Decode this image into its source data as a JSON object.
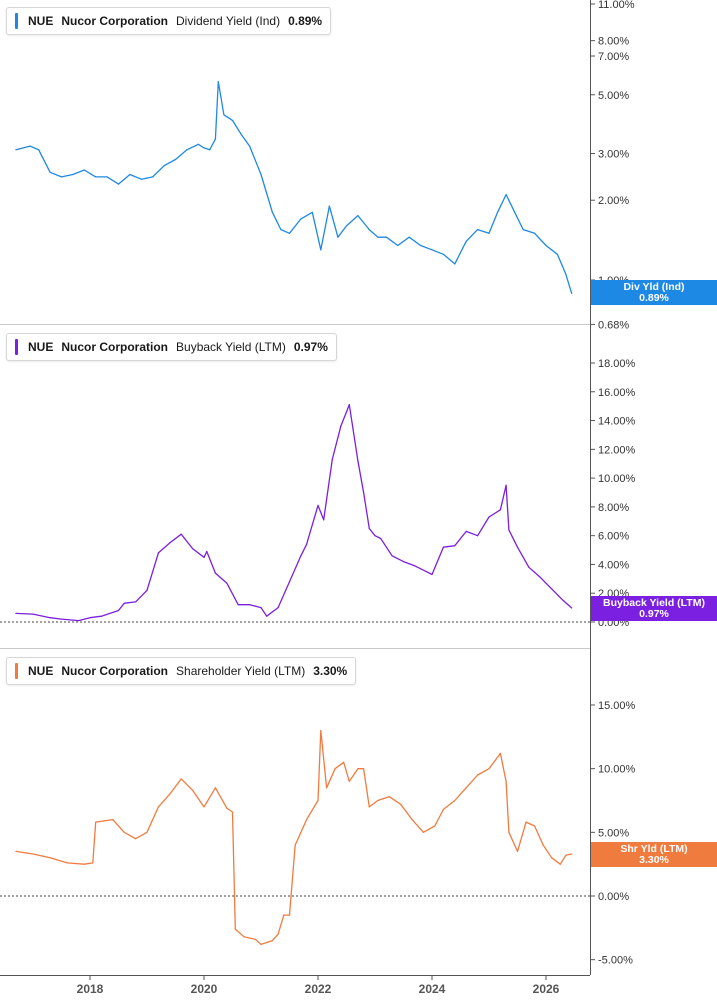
{
  "colors": {
    "blue": "#1e88e5",
    "purple": "#7b1fe0",
    "orange": "#f07b3f",
    "axis": "#555555",
    "grid_sep": "#c8c8c8"
  },
  "x_axis": {
    "ticks": [
      "2018",
      "2020",
      "2022",
      "2024",
      "2026"
    ]
  },
  "legends": [
    {
      "ticker": "NUE",
      "company": "Nucor Corporation",
      "metric": "Dividend Yield (Ind)",
      "value": "0.89%"
    },
    {
      "ticker": "NUE",
      "company": "Nucor Corporation",
      "metric": "Buyback Yield (LTM)",
      "value": "0.97%"
    },
    {
      "ticker": "NUE",
      "company": "Nucor Corporation",
      "metric": "Shareholder Yield (LTM)",
      "value": "3.30%"
    }
  ],
  "tags": [
    {
      "label": "Div Yld (Ind)",
      "value": "0.89%"
    },
    {
      "label": "Buyback Yield (LTM)",
      "value": "0.97%"
    },
    {
      "label": "Shr Yld (LTM)",
      "value": "3.30%"
    }
  ],
  "chart_data": [
    {
      "type": "line",
      "title": "Dividend Yield (Ind)",
      "y_scale": "log",
      "ylim": [
        0.68,
        11.0
      ],
      "y_ticks": [
        "11.00%",
        "8.00%",
        "7.00%",
        "5.00%",
        "3.00%",
        "2.00%",
        "1.00%",
        "0.85%",
        "0.68%"
      ],
      "series": [
        {
          "name": "Div Yld (Ind)",
          "x": [
            2016.7,
            2016.95,
            2017.1,
            2017.3,
            2017.5,
            2017.7,
            2017.9,
            2018.1,
            2018.3,
            2018.5,
            2018.7,
            2018.9,
            2019.1,
            2019.3,
            2019.5,
            2019.7,
            2019.9,
            2020.0,
            2020.1,
            2020.2,
            2020.25,
            2020.35,
            2020.5,
            2020.65,
            2020.8,
            2021.0,
            2021.2,
            2021.35,
            2021.5,
            2021.7,
            2021.9,
            2022.05,
            2022.2,
            2022.35,
            2022.5,
            2022.7,
            2022.9,
            2023.05,
            2023.2,
            2023.4,
            2023.6,
            2023.8,
            2024.0,
            2024.2,
            2024.4,
            2024.6,
            2024.8,
            2025.0,
            2025.15,
            2025.3,
            2025.45,
            2025.6,
            2025.8,
            2026.0,
            2026.2,
            2026.35,
            2026.45
          ],
          "values": [
            3.1,
            3.2,
            3.1,
            2.55,
            2.45,
            2.5,
            2.6,
            2.45,
            2.45,
            2.3,
            2.5,
            2.4,
            2.45,
            2.7,
            2.85,
            3.1,
            3.25,
            3.15,
            3.1,
            3.4,
            5.6,
            4.2,
            4.0,
            3.55,
            3.2,
            2.5,
            1.8,
            1.55,
            1.5,
            1.7,
            1.8,
            1.3,
            1.9,
            1.45,
            1.6,
            1.75,
            1.55,
            1.45,
            1.45,
            1.35,
            1.45,
            1.35,
            1.3,
            1.25,
            1.15,
            1.4,
            1.55,
            1.5,
            1.8,
            2.1,
            1.8,
            1.55,
            1.5,
            1.35,
            1.25,
            1.05,
            0.89
          ]
        }
      ]
    },
    {
      "type": "line",
      "title": "Buyback Yield (LTM)",
      "ylim": [
        0,
        18
      ],
      "y_ticks": [
        "18.00%",
        "16.00%",
        "14.00%",
        "12.00%",
        "10.00%",
        "8.00%",
        "6.00%",
        "4.00%",
        "2.00%",
        "0.00%"
      ],
      "series": [
        {
          "name": "Buyback Yield (LTM)",
          "x": [
            2016.7,
            2017.0,
            2017.3,
            2017.5,
            2017.8,
            2018.0,
            2018.2,
            2018.5,
            2018.6,
            2018.8,
            2019.0,
            2019.2,
            2019.4,
            2019.6,
            2019.8,
            2020.0,
            2020.05,
            2020.2,
            2020.4,
            2020.6,
            2020.8,
            2021.0,
            2021.1,
            2021.3,
            2021.5,
            2021.7,
            2021.8,
            2022.0,
            2022.1,
            2022.25,
            2022.4,
            2022.55,
            2022.7,
            2022.8,
            2022.9,
            2023.0,
            2023.1,
            2023.3,
            2023.5,
            2023.7,
            2023.9,
            2024.0,
            2024.2,
            2024.4,
            2024.6,
            2024.8,
            2025.0,
            2025.2,
            2025.3,
            2025.35,
            2025.5,
            2025.7,
            2025.9,
            2026.1,
            2026.3,
            2026.45
          ],
          "values": [
            0.6,
            0.55,
            0.3,
            0.2,
            0.1,
            0.3,
            0.4,
            0.8,
            1.3,
            1.4,
            2.2,
            4.8,
            5.5,
            6.1,
            5.1,
            4.5,
            4.9,
            3.4,
            2.7,
            1.2,
            1.2,
            1.0,
            0.4,
            1.0,
            2.8,
            4.6,
            5.4,
            8.1,
            7.1,
            11.3,
            13.6,
            15.1,
            11.2,
            9.0,
            6.5,
            6.0,
            5.8,
            4.6,
            4.2,
            3.9,
            3.5,
            3.3,
            5.2,
            5.3,
            6.3,
            6.0,
            7.3,
            7.8,
            9.5,
            6.4,
            5.2,
            3.8,
            3.1,
            2.3,
            1.5,
            0.97
          ]
        }
      ]
    },
    {
      "type": "line",
      "title": "Shareholder Yield (LTM)",
      "ylim": [
        -5,
        15
      ],
      "y_ticks": [
        "15.00%",
        "10.00%",
        "5.00%",
        "0.00%",
        "-5.00%"
      ],
      "series": [
        {
          "name": "Shr Yld (LTM)",
          "x": [
            2016.7,
            2017.0,
            2017.3,
            2017.6,
            2017.9,
            2018.05,
            2018.1,
            2018.4,
            2018.6,
            2018.8,
            2019.0,
            2019.2,
            2019.4,
            2019.6,
            2019.8,
            2020.0,
            2020.2,
            2020.4,
            2020.5,
            2020.55,
            2020.7,
            2020.9,
            2021.0,
            2021.2,
            2021.3,
            2021.4,
            2021.5,
            2021.6,
            2021.8,
            2022.0,
            2022.05,
            2022.15,
            2022.3,
            2022.45,
            2022.55,
            2022.7,
            2022.8,
            2022.9,
            2023.05,
            2023.25,
            2023.45,
            2023.65,
            2023.85,
            2024.05,
            2024.2,
            2024.4,
            2024.6,
            2024.8,
            2025.0,
            2025.2,
            2025.3,
            2025.35,
            2025.5,
            2025.65,
            2025.8,
            2025.95,
            2026.1,
            2026.25,
            2026.35,
            2026.45
          ],
          "values": [
            3.5,
            3.3,
            3.0,
            2.6,
            2.5,
            2.6,
            5.8,
            6.0,
            5.0,
            4.5,
            5.0,
            7.0,
            8.0,
            9.2,
            8.3,
            7.0,
            8.5,
            6.9,
            6.6,
            -2.6,
            -3.2,
            -3.4,
            -3.8,
            -3.5,
            -3.0,
            -1.5,
            -1.5,
            4.0,
            6.0,
            7.5,
            13.0,
            8.5,
            10.0,
            10.5,
            9.0,
            10.0,
            10.0,
            7.0,
            7.5,
            7.8,
            7.2,
            6.0,
            5.0,
            5.5,
            6.8,
            7.5,
            8.5,
            9.5,
            10.0,
            11.2,
            9.0,
            5.0,
            3.5,
            5.8,
            5.5,
            4.0,
            3.0,
            2.5,
            3.2,
            3.3
          ]
        }
      ]
    }
  ]
}
